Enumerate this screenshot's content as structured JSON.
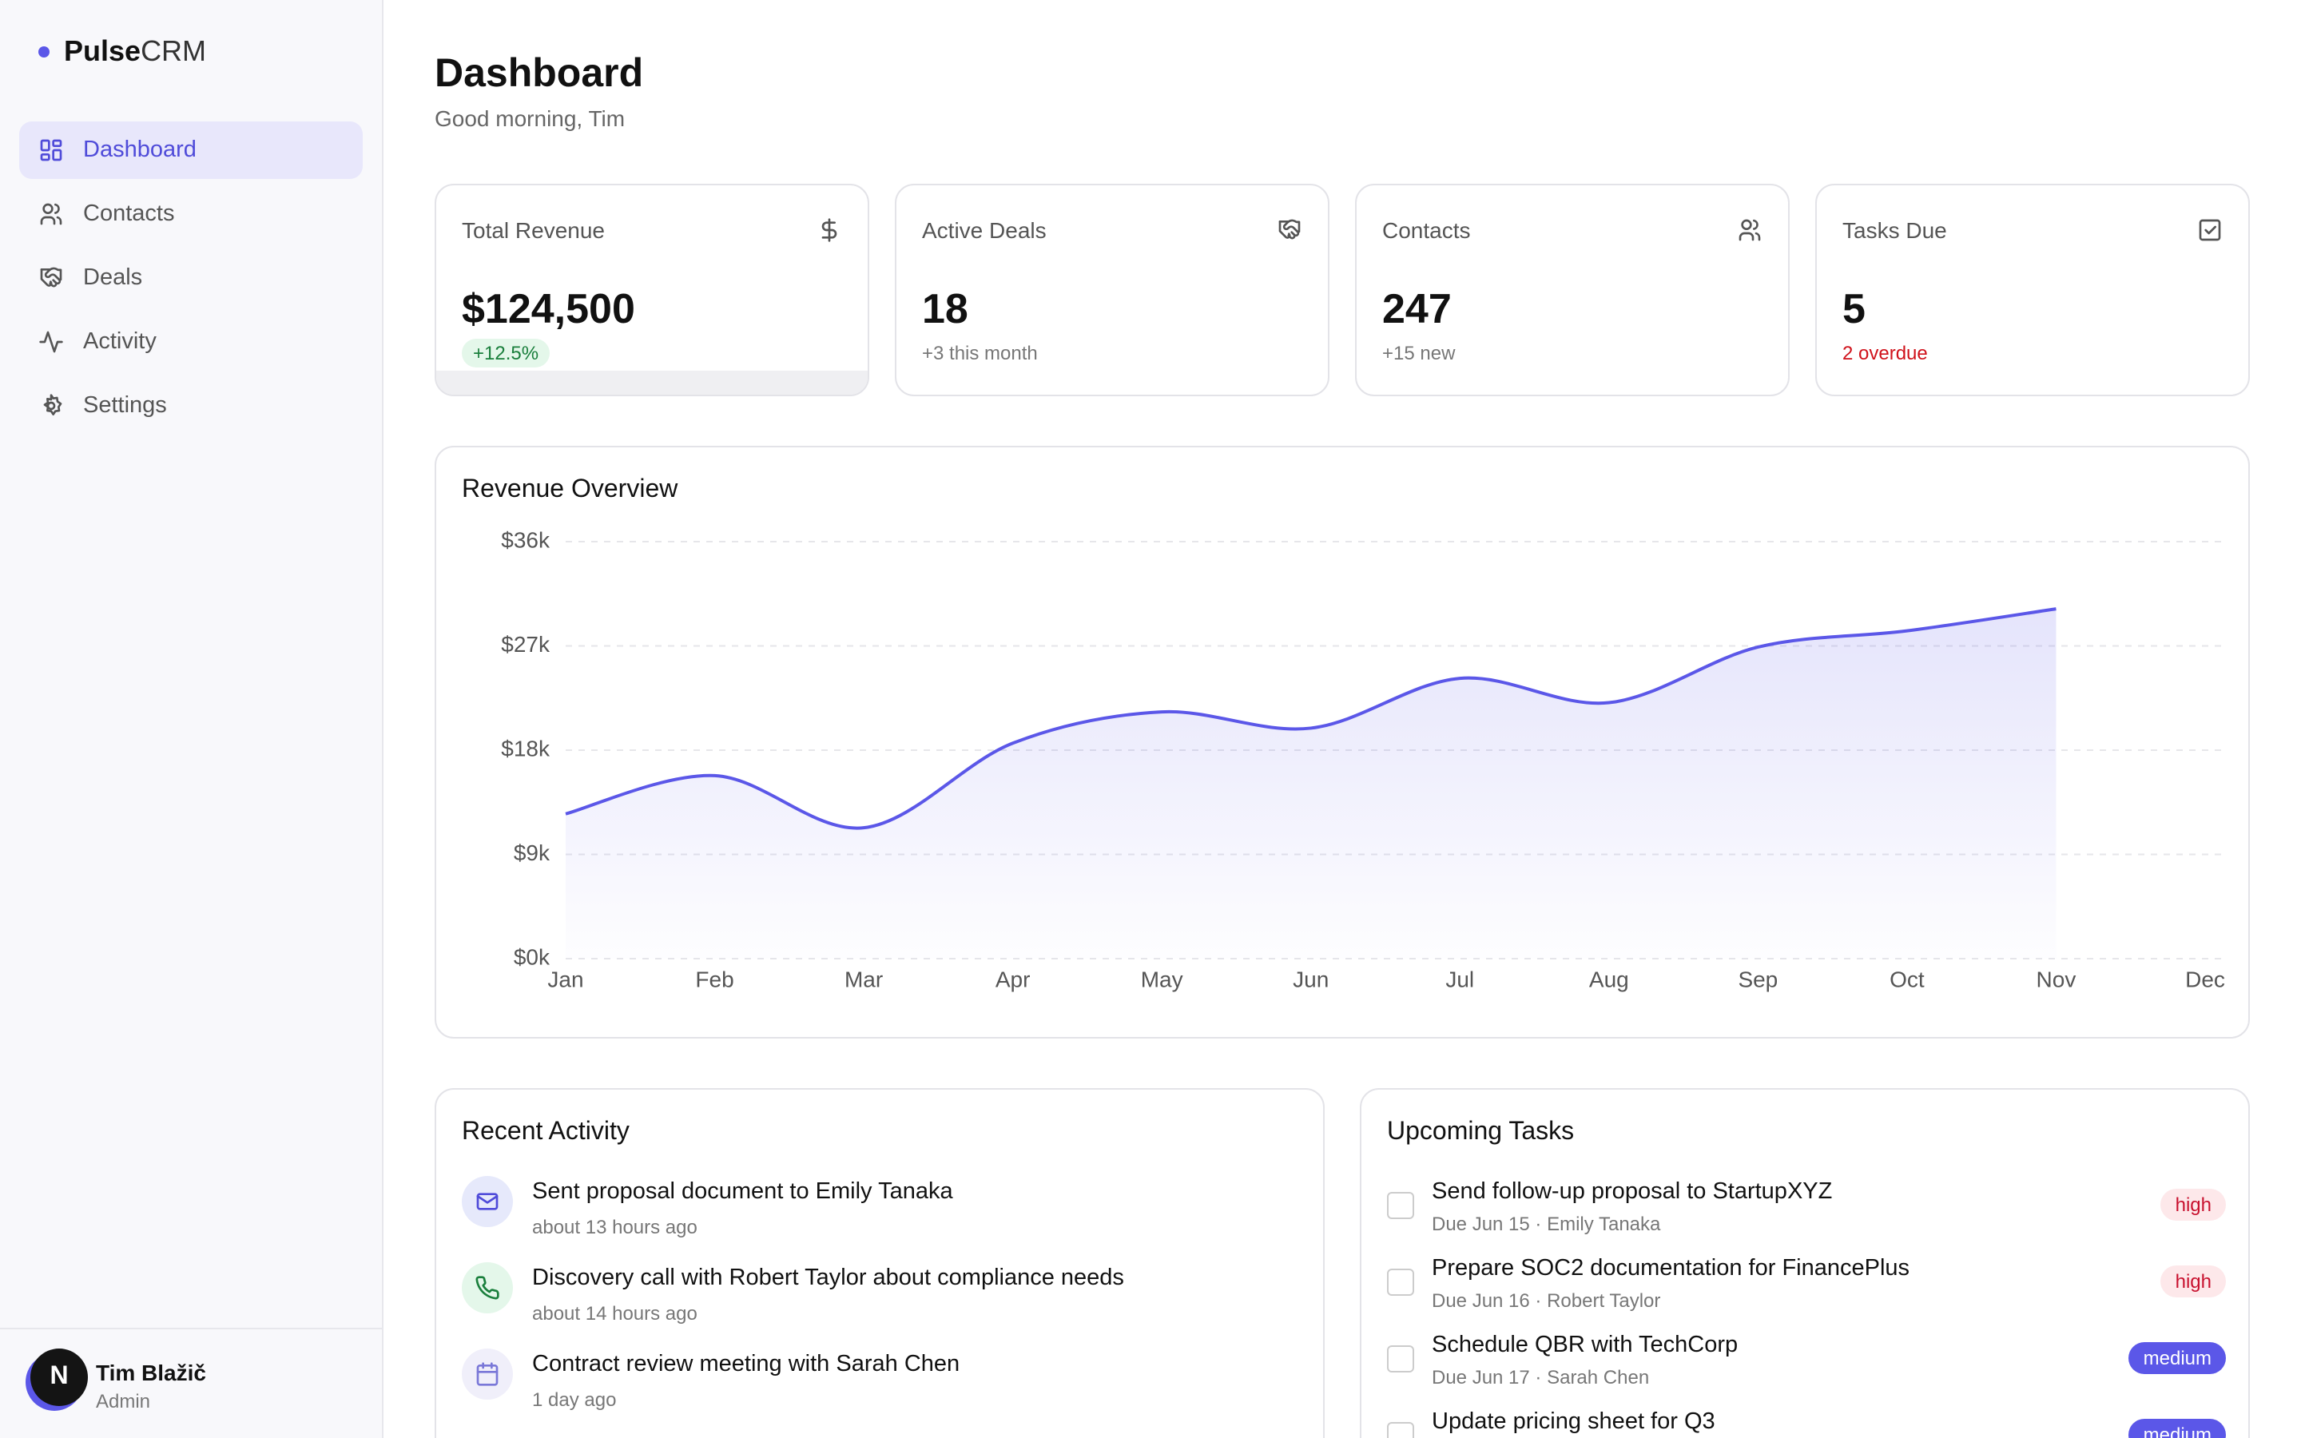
{
  "sidebar": {
    "brand_bold": "Pulse",
    "brand_light": "CRM",
    "nav": [
      "Dashboard",
      "Contacts",
      "Deals",
      "Activity",
      "Settings"
    ],
    "user": {
      "initial": "N",
      "name": "Tim Blažič",
      "role": "Admin"
    }
  },
  "header": {
    "title": "Dashboard",
    "subtitle": "Good morning, Tim"
  },
  "kpis": [
    {
      "label": "Total Revenue",
      "value": "$124,500",
      "note": "+12.5%"
    },
    {
      "label": "Active Deals",
      "value": "18",
      "note": "+3 this month"
    },
    {
      "label": "Contacts",
      "value": "247",
      "note": "+15 new"
    },
    {
      "label": "Tasks Due",
      "value": "5",
      "note": "2 overdue"
    }
  ],
  "chart_data": {
    "type": "area",
    "title": "Revenue Overview",
    "categories": [
      "Jan",
      "Feb",
      "Mar",
      "Apr",
      "May",
      "Jun",
      "Jul",
      "Aug",
      "Sep",
      "Oct",
      "Nov",
      "Dec"
    ],
    "series": [
      {
        "name": "Revenue",
        "color": "#5b57e8",
        "values": [
          12.5,
          15.8,
          11.3,
          18.6,
          21.3,
          19.9,
          24.2,
          22.1,
          26.9,
          28.3,
          30.2,
          null
        ]
      }
    ],
    "ylim": [
      0,
      36
    ],
    "yticks": [
      {
        "value": 0,
        "label": "$0k"
      },
      {
        "value": 9,
        "label": "$9k"
      },
      {
        "value": 18,
        "label": "$18k"
      },
      {
        "value": 27,
        "label": "$27k"
      },
      {
        "value": 36,
        "label": "$36k"
      }
    ],
    "grid": true
  },
  "recent_activity": {
    "title": "Recent Activity",
    "items": [
      {
        "text": "Sent proposal document to Emily Tanaka",
        "time": "about 13 hours ago"
      },
      {
        "text": "Discovery call with Robert Taylor about compliance needs",
        "time": "about 14 hours ago"
      },
      {
        "text": "Contract review meeting with Sarah Chen",
        "time": "1 day ago"
      }
    ]
  },
  "upcoming_tasks": {
    "title": "Upcoming Tasks",
    "items": [
      {
        "title": "Send follow-up proposal to StartupXYZ",
        "meta": "Due Jun 15 · Emily Tanaka",
        "priority": "high"
      },
      {
        "title": "Prepare SOC2 documentation for FinancePlus",
        "meta": "Due Jun 16 · Robert Taylor",
        "priority": "high"
      },
      {
        "title": "Schedule QBR with TechCorp",
        "meta": "Due Jun 17 · Sarah Chen",
        "priority": "medium"
      },
      {
        "title": "Update pricing sheet for Q3",
        "priority": "medium"
      }
    ]
  }
}
